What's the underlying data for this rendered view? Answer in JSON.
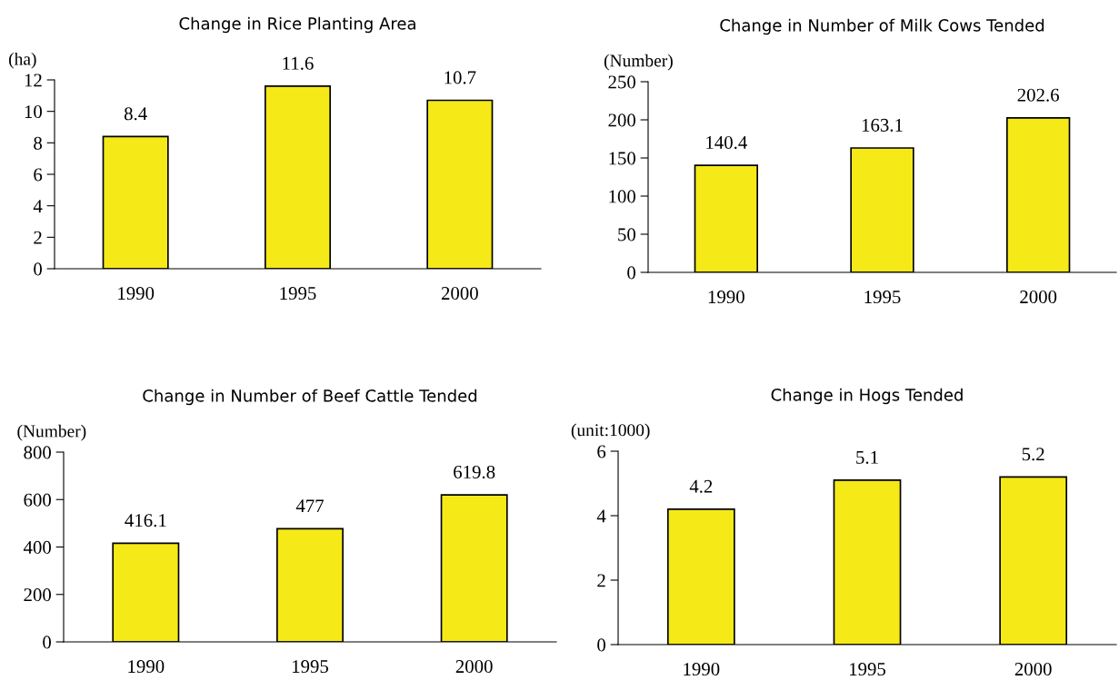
{
  "chart_data": [
    {
      "type": "bar",
      "title": "Change in Rice Planting Area",
      "ylabel": "(ha)",
      "categories": [
        "1990",
        "1995",
        "2000"
      ],
      "values": [
        8.4,
        11.6,
        10.7
      ],
      "color": "#f5e918",
      "ylim": [
        0,
        12
      ],
      "yticks": [
        0,
        2,
        4,
        6,
        8,
        10,
        12
      ],
      "data_labels": true,
      "grid": false,
      "legend": false
    },
    {
      "type": "bar",
      "title": "Change in Number of Milk Cows Tended",
      "ylabel": "(Number)",
      "categories": [
        "1990",
        "1995",
        "2000"
      ],
      "values": [
        140.4,
        163.1,
        202.6
      ],
      "color": "#f5e918",
      "ylim": [
        0,
        250
      ],
      "yticks": [
        0,
        50,
        100,
        150,
        200,
        250
      ],
      "data_labels": true,
      "grid": false,
      "legend": false
    },
    {
      "type": "bar",
      "title": "Change in Number of Beef Cattle Tended",
      "ylabel": "(Number)",
      "categories": [
        "1990",
        "1995",
        "2000"
      ],
      "values": [
        416.1,
        477,
        619.8
      ],
      "color": "#f5e918",
      "ylim": [
        0,
        800
      ],
      "yticks": [
        0,
        200,
        400,
        600,
        800
      ],
      "data_labels": true,
      "grid": false,
      "legend": false
    },
    {
      "type": "bar",
      "title": "Change in Hogs Tended",
      "ylabel": "(unit:1000)",
      "categories": [
        "1990",
        "1995",
        "2000"
      ],
      "values": [
        4.2,
        5.1,
        5.2
      ],
      "color": "#f5e918",
      "ylim": [
        0,
        6
      ],
      "yticks": [
        0,
        2,
        4,
        6
      ],
      "data_labels": true,
      "grid": false,
      "legend": false
    }
  ]
}
